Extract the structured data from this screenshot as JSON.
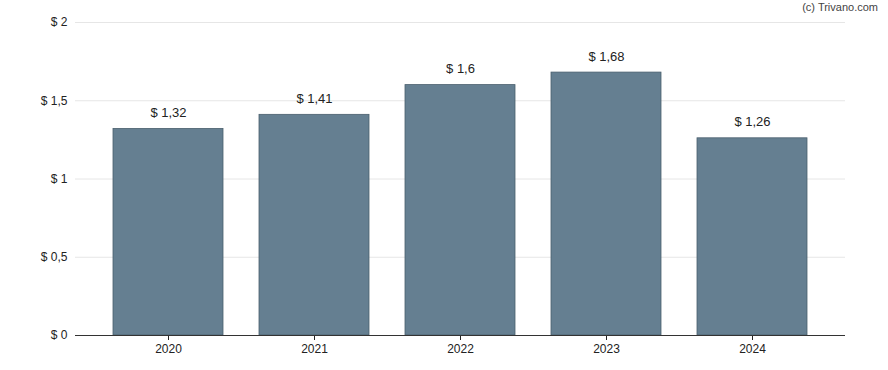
{
  "chart_data": {
    "type": "bar",
    "annotations": [
      "(c) Trivano.com"
    ],
    "categories": [
      "2020",
      "2021",
      "2022",
      "2023",
      "2024"
    ],
    "values": [
      1.32,
      1.41,
      1.6,
      1.68,
      1.26
    ],
    "value_labels": [
      "$ 1,32",
      "$ 1,41",
      "$ 1,6",
      "$ 1,68",
      "$ 1,26"
    ],
    "data_labels": true,
    "color": "#657f91",
    "ylim": [
      0,
      2
    ],
    "yticks": [
      {
        "value": 0,
        "label": "$ 0"
      },
      {
        "value": 0.5,
        "label": "$ 0,5"
      },
      {
        "value": 1,
        "label": "$ 1"
      },
      {
        "value": 1.5,
        "label": "$ 1,5"
      },
      {
        "value": 2,
        "label": "$ 2"
      }
    ],
    "grid": true
  }
}
